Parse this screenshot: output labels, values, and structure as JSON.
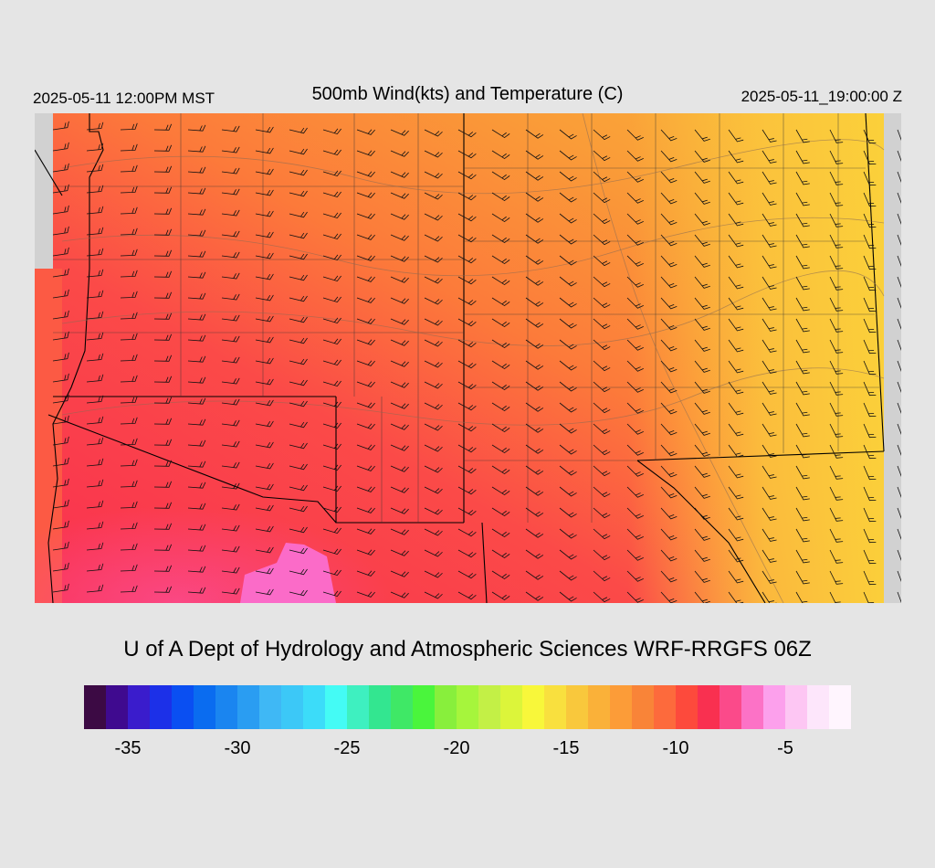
{
  "header": {
    "left": "2025-05-11 12:00PM MST",
    "title": "500mb Wind(kts) and Temperature (C)",
    "right": "2025-05-11_19:00:00 Z"
  },
  "credit": "U of A Dept of Hydrology and Atmospheric Sciences WRF-RRGFS 06Z",
  "colorbar": {
    "colors": [
      "#3c0a44",
      "#3f0a8f",
      "#3a1ccc",
      "#1c30e8",
      "#0a4ff2",
      "#0a6cf0",
      "#1a85f0",
      "#2a9df2",
      "#3fb8f5",
      "#3cc8f7",
      "#3cdcf9",
      "#44fbf5",
      "#3ef0c0",
      "#33e690",
      "#3fe866",
      "#4af53c",
      "#88ef3c",
      "#a6f53c",
      "#c3f046",
      "#dcf53a",
      "#f8f73a",
      "#f9e03e",
      "#f9c83c",
      "#fab139",
      "#fc9c38",
      "#f98438",
      "#fd6a3c",
      "#fd4a3c",
      "#f93050",
      "#fb4a8a",
      "#fc72c6",
      "#fca0ec",
      "#fdc6f3",
      "#fde6fb",
      "#fff5fe"
    ],
    "ticks": [
      {
        "label": "-35",
        "value": -35
      },
      {
        "label": "-30",
        "value": -30
      },
      {
        "label": "-25",
        "value": -25
      },
      {
        "label": "-20",
        "value": -20
      },
      {
        "label": "-15",
        "value": -15
      },
      {
        "label": "-10",
        "value": -10
      },
      {
        "label": "-5",
        "value": -5
      }
    ]
  }
}
